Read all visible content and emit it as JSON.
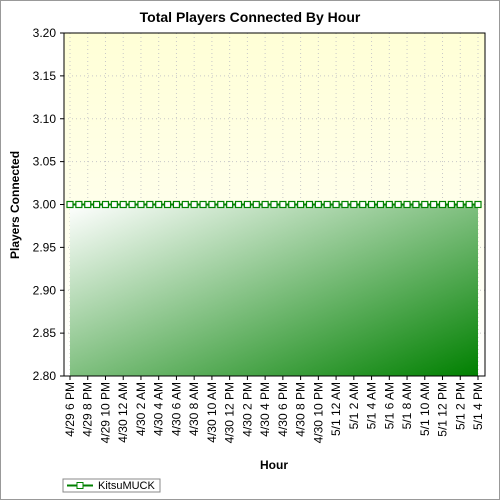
{
  "chart_data": {
    "type": "area",
    "title": "Total Players Connected By Hour",
    "x_label": "Hour",
    "y_label": "Players Connected",
    "categories": [
      "4/29 6 PM",
      null,
      "4/29 8 PM",
      null,
      "4/29 10 PM",
      null,
      "4/30 12 AM",
      null,
      "4/30 2 AM",
      null,
      "4/30 4 AM",
      null,
      "4/30 6 AM",
      null,
      "4/30 8 AM",
      null,
      "4/30 10 AM",
      null,
      "4/30 12 PM",
      null,
      "4/30 2 PM",
      null,
      "4/30 4 PM",
      null,
      "4/30 6 PM",
      null,
      "4/30 8 PM",
      null,
      "4/30 10 PM",
      null,
      "5/1 12 AM",
      null,
      "5/1 2 AM",
      null,
      "5/1 4 AM",
      null,
      "5/1 6 AM",
      null,
      "5/1 8 AM",
      null,
      "5/1 10 AM",
      null,
      "5/1 12 PM",
      null,
      "5/1 2 PM",
      null,
      "5/1 4 PM"
    ],
    "series": [
      {
        "name": "KitsuMUCK",
        "color": "#008000",
        "values": [
          3,
          3,
          3,
          3,
          3,
          3,
          3,
          3,
          3,
          3,
          3,
          3,
          3,
          3,
          3,
          3,
          3,
          3,
          3,
          3,
          3,
          3,
          3,
          3,
          3,
          3,
          3,
          3,
          3,
          3,
          3,
          3,
          3,
          3,
          3,
          3,
          3,
          3,
          3,
          3,
          3,
          3,
          3,
          3,
          3,
          3,
          3
        ]
      }
    ],
    "ylim": [
      2.8,
      3.2
    ],
    "yticks": [
      {
        "value": 2.8,
        "label": "2.80"
      },
      2.85,
      {
        "value": 2.9,
        "label": "2.90"
      },
      2.95,
      {
        "value": 3.0,
        "label": "3.00"
      },
      3.05,
      {
        "value": 3.1,
        "label": "3.10"
      },
      3.15,
      {
        "value": 3.2,
        "label": "3.20"
      }
    ],
    "grid": true,
    "legend": "bottom-left"
  }
}
